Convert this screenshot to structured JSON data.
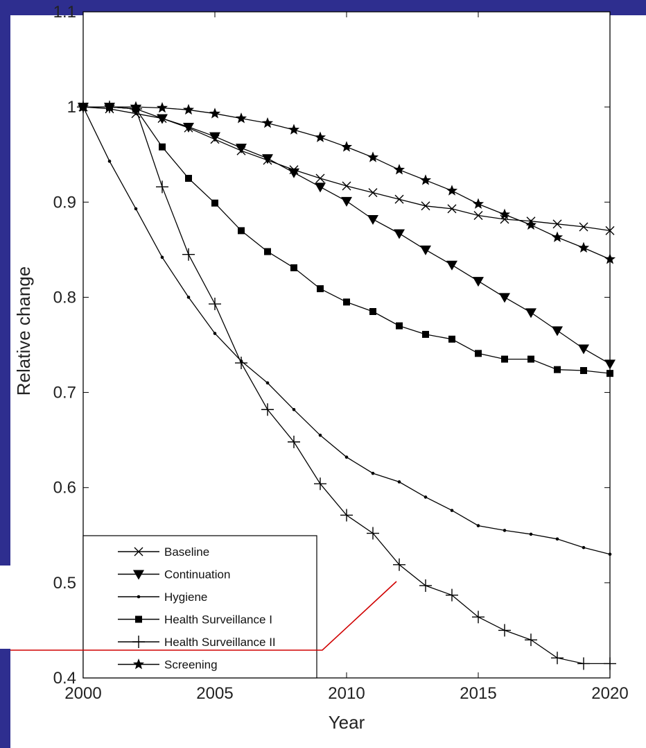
{
  "colors": {
    "slide_accent": "#2e2e8f",
    "series": "#000000",
    "callout_line": "#d00000"
  },
  "chart_data": {
    "type": "line",
    "title": "",
    "xlabel": "Year",
    "ylabel": "Relative change",
    "xlim": [
      2000,
      2020
    ],
    "ylim": [
      0.4,
      1.1
    ],
    "xticks": [
      2000,
      2005,
      2010,
      2015,
      2020
    ],
    "yticks": [
      0.4,
      0.5,
      0.6,
      0.7,
      0.8,
      0.9,
      1,
      1.1
    ],
    "ytick_labels": [
      "0.4",
      "0.5",
      "0.6",
      "0.7",
      "0.8",
      "0.9",
      "1",
      "1.1"
    ],
    "grid": false,
    "legend_position": "bottom-left",
    "x": [
      2000,
      2001,
      2002,
      2003,
      2004,
      2005,
      2006,
      2007,
      2008,
      2009,
      2010,
      2011,
      2012,
      2013,
      2014,
      2015,
      2016,
      2017,
      2018,
      2019,
      2020
    ],
    "series": [
      {
        "name": "Baseline",
        "marker": "x",
        "values": [
          1.0,
          0.998,
          0.993,
          0.988,
          0.978,
          0.966,
          0.954,
          0.944,
          0.934,
          0.925,
          0.917,
          0.91,
          0.903,
          0.896,
          0.893,
          0.886,
          0.882,
          0.88,
          0.877,
          0.874,
          0.87
        ]
      },
      {
        "name": "Continuation",
        "marker": "triangle-down",
        "values": [
          1.0,
          1.0,
          0.998,
          0.988,
          0.979,
          0.969,
          0.957,
          0.946,
          0.931,
          0.916,
          0.901,
          0.882,
          0.867,
          0.85,
          0.834,
          0.817,
          0.8,
          0.784,
          0.765,
          0.746,
          0.73
        ]
      },
      {
        "name": "Hygiene",
        "marker": "dot",
        "values": [
          1.0,
          0.943,
          0.893,
          0.842,
          0.8,
          0.762,
          0.733,
          0.71,
          0.682,
          0.655,
          0.632,
          0.615,
          0.606,
          0.59,
          0.576,
          0.56,
          0.555,
          0.551,
          0.546,
          0.537,
          0.53
        ]
      },
      {
        "name": "Health Surveillance I",
        "marker": "square",
        "values": [
          1.0,
          1.0,
          0.998,
          0.958,
          0.925,
          0.899,
          0.87,
          0.848,
          0.831,
          0.809,
          0.795,
          0.785,
          0.77,
          0.761,
          0.756,
          0.741,
          0.735,
          0.735,
          0.724,
          0.723,
          0.72
        ]
      },
      {
        "name": "Health Surveillance II",
        "marker": "plus",
        "values": [
          1.0,
          1.0,
          0.998,
          0.916,
          0.845,
          0.793,
          0.731,
          0.682,
          0.648,
          0.604,
          0.571,
          0.552,
          0.519,
          0.497,
          0.487,
          0.464,
          0.45,
          0.44,
          0.421,
          0.415,
          0.415
        ]
      },
      {
        "name": "Screening",
        "marker": "star",
        "values": [
          1.0,
          1.0,
          1.0,
          0.999,
          0.997,
          0.993,
          0.988,
          0.983,
          0.976,
          0.968,
          0.958,
          0.947,
          0.934,
          0.923,
          0.912,
          0.898,
          0.887,
          0.876,
          0.863,
          0.852,
          0.84
        ]
      }
    ]
  }
}
